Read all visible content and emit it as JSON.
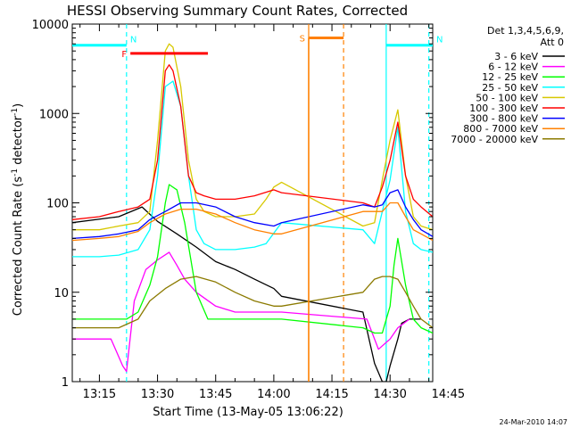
{
  "chart_data": {
    "type": "line",
    "title": "HESSI Observing Summary Count Rates, Corrected",
    "xlabel": "Start Time (13-May-05 13:06:22)",
    "ylabel": "Corrected Count Rate (s⁻¹ detector⁻¹)",
    "ylabel_main": "Corrected Count Rate (s",
    "ylabel_sup1": "-1",
    "ylabel_mid": " detector",
    "ylabel_sup2": "-1",
    "ylabel_end": ")",
    "y_scale": "log",
    "ylim": [
      1,
      10000
    ],
    "xlim_minutes": [
      8,
      101
    ],
    "y_ticks": [
      {
        "value": 1,
        "label": "1"
      },
      {
        "value": 10,
        "label": "10"
      },
      {
        "value": 100,
        "label": "100"
      },
      {
        "value": 1000,
        "label": "1000"
      },
      {
        "value": 10000,
        "label": "10000"
      }
    ],
    "x_ticks": [
      {
        "value": 15,
        "label": "13:15"
      },
      {
        "value": 30,
        "label": "13:30"
      },
      {
        "value": 45,
        "label": "13:45"
      },
      {
        "value": 60,
        "label": "14:00"
      },
      {
        "value": 75,
        "label": "14:15"
      },
      {
        "value": 90,
        "label": "14:30"
      },
      {
        "value": 105,
        "label": "14:45"
      }
    ],
    "legend_title_1": "Det 1,3,4,5,6,9,",
    "legend_title_2": "Att 0",
    "legend_placement": "right",
    "footer": "24-Mar-2010 14:07",
    "series": [
      {
        "name": "3 - 6 keV",
        "color": "#000000",
        "x": [
          8,
          20,
          26,
          30,
          35,
          40,
          45,
          50,
          55,
          60,
          62,
          83,
          86,
          88,
          89,
          90,
          92,
          93,
          95,
          98
        ],
        "y": [
          60,
          70,
          90,
          62,
          45,
          32,
          22,
          18,
          14,
          11,
          9,
          6,
          1.6,
          1,
          1,
          1.5,
          3,
          4.5,
          5,
          5
        ]
      },
      {
        "name": "6 - 12 keV",
        "color": "#ff00ff",
        "x": [
          8,
          12,
          18,
          21,
          22,
          24,
          27,
          30,
          33,
          35,
          37,
          40,
          45,
          50,
          55,
          60,
          62,
          84,
          87,
          90,
          92,
          95
        ],
        "y": [
          3,
          3,
          3,
          1.5,
          1.3,
          8,
          18,
          23,
          28,
          20,
          14,
          10,
          7,
          6,
          6,
          6,
          6,
          5,
          2.3,
          3,
          4,
          5
        ]
      },
      {
        "name": "12 - 25 keV",
        "color": "#00ff00",
        "x": [
          8,
          15,
          22,
          25,
          28,
          30,
          32,
          33,
          35,
          37,
          40,
          43,
          46,
          50,
          55,
          60,
          62,
          83,
          86,
          88,
          90,
          91,
          92,
          94,
          96,
          98,
          101
        ],
        "y": [
          5,
          5,
          5,
          6,
          12,
          25,
          100,
          160,
          140,
          60,
          10,
          5,
          5,
          5,
          5,
          5,
          5,
          4,
          3.5,
          3.5,
          7,
          20,
          40,
          12,
          5,
          4,
          3.5
        ]
      },
      {
        "name": "25 - 50 keV",
        "color": "#00ffff",
        "x": [
          8,
          15,
          20,
          25,
          28,
          30,
          32,
          34,
          36,
          38,
          40,
          42,
          45,
          50,
          55,
          58,
          62,
          83,
          86,
          88,
          90,
          92,
          94,
          96,
          98,
          101
        ],
        "y": [
          25,
          25,
          26,
          30,
          50,
          200,
          2000,
          2300,
          1200,
          200,
          50,
          35,
          30,
          30,
          32,
          35,
          60,
          50,
          35,
          80,
          180,
          700,
          80,
          35,
          30,
          28
        ]
      },
      {
        "name": "50 - 100 keV",
        "color": "#d7c800",
        "x": [
          8,
          15,
          20,
          25,
          28,
          30,
          32,
          33,
          34,
          36,
          38,
          40,
          42,
          45,
          50,
          55,
          58,
          60,
          62,
          83,
          86,
          88,
          90,
          92,
          94,
          96,
          98,
          101
        ],
        "y": [
          50,
          50,
          55,
          60,
          80,
          500,
          5000,
          6000,
          5500,
          2000,
          300,
          110,
          80,
          70,
          70,
          75,
          110,
          150,
          170,
          55,
          60,
          180,
          500,
          1100,
          200,
          70,
          55,
          50
        ]
      },
      {
        "name": "100 - 300 keV",
        "color": "#ff0000",
        "x": [
          8,
          15,
          20,
          25,
          28,
          30,
          32,
          33,
          34,
          36,
          38,
          40,
          42,
          45,
          50,
          55,
          60,
          62,
          83,
          86,
          88,
          90,
          92,
          94,
          96,
          98,
          101
        ],
        "y": [
          65,
          70,
          80,
          90,
          110,
          300,
          3000,
          3500,
          3000,
          1200,
          200,
          130,
          120,
          110,
          110,
          120,
          140,
          130,
          100,
          90,
          150,
          300,
          800,
          200,
          110,
          90,
          70
        ]
      },
      {
        "name": "300 - 800 keV",
        "color": "#0000ff",
        "x": [
          8,
          15,
          20,
          25,
          28,
          32,
          36,
          40,
          45,
          50,
          55,
          60,
          62,
          83,
          86,
          88,
          90,
          92,
          94,
          96,
          98,
          101
        ],
        "y": [
          40,
          42,
          45,
          50,
          65,
          80,
          100,
          100,
          90,
          70,
          60,
          55,
          60,
          95,
          90,
          95,
          130,
          140,
          90,
          65,
          50,
          42
        ]
      },
      {
        "name": "800 - 7000 keV",
        "color": "#ff8000",
        "x": [
          8,
          15,
          20,
          25,
          28,
          32,
          36,
          40,
          45,
          50,
          55,
          60,
          62,
          83,
          86,
          88,
          90,
          92,
          94,
          96,
          98,
          101
        ],
        "y": [
          38,
          40,
          42,
          48,
          60,
          75,
          85,
          85,
          75,
          60,
          50,
          45,
          45,
          80,
          80,
          80,
          100,
          100,
          70,
          50,
          45,
          38
        ]
      },
      {
        "name": "7000 - 20000 keV",
        "color": "#8b7a00",
        "x": [
          8,
          15,
          20,
          25,
          28,
          32,
          36,
          40,
          45,
          50,
          55,
          60,
          62,
          83,
          86,
          88,
          90,
          92,
          94,
          96,
          98,
          101
        ],
        "y": [
          4,
          4,
          4,
          5,
          8,
          11,
          14,
          15,
          13,
          10,
          8,
          7,
          7,
          10,
          14,
          15,
          15,
          14,
          10,
          7,
          5,
          4
        ]
      }
    ],
    "annotations": [
      {
        "label": "N",
        "color": "#00ffff",
        "x_start": 8,
        "x_end": 22,
        "y": 5800
      },
      {
        "label": "N",
        "color": "#00ffff",
        "x_start": 89,
        "x_end": 101,
        "y": 5800
      },
      {
        "label": "F",
        "color": "#ff0000",
        "x_start": 23,
        "x_end": 43,
        "y": 4700
      },
      {
        "label": "S",
        "color": "#ff8000",
        "x_start": 69,
        "x_end": 78,
        "y": 7000
      }
    ],
    "attenuator_spans": [
      {
        "color": "#ff8000",
        "x_start": 69,
        "x_end": 78
      }
    ],
    "vertical_markers": [
      {
        "color": "#00ffff",
        "x": 22,
        "style": "dashed"
      },
      {
        "color": "#00ffff",
        "x": 89,
        "style": "solid"
      },
      {
        "color": "#00ffff",
        "x": 100,
        "style": "dashed"
      },
      {
        "color": "#ff8000",
        "x": 69,
        "style": "solid"
      },
      {
        "color": "#ff8000",
        "x": 78,
        "style": "dashed"
      }
    ]
  }
}
